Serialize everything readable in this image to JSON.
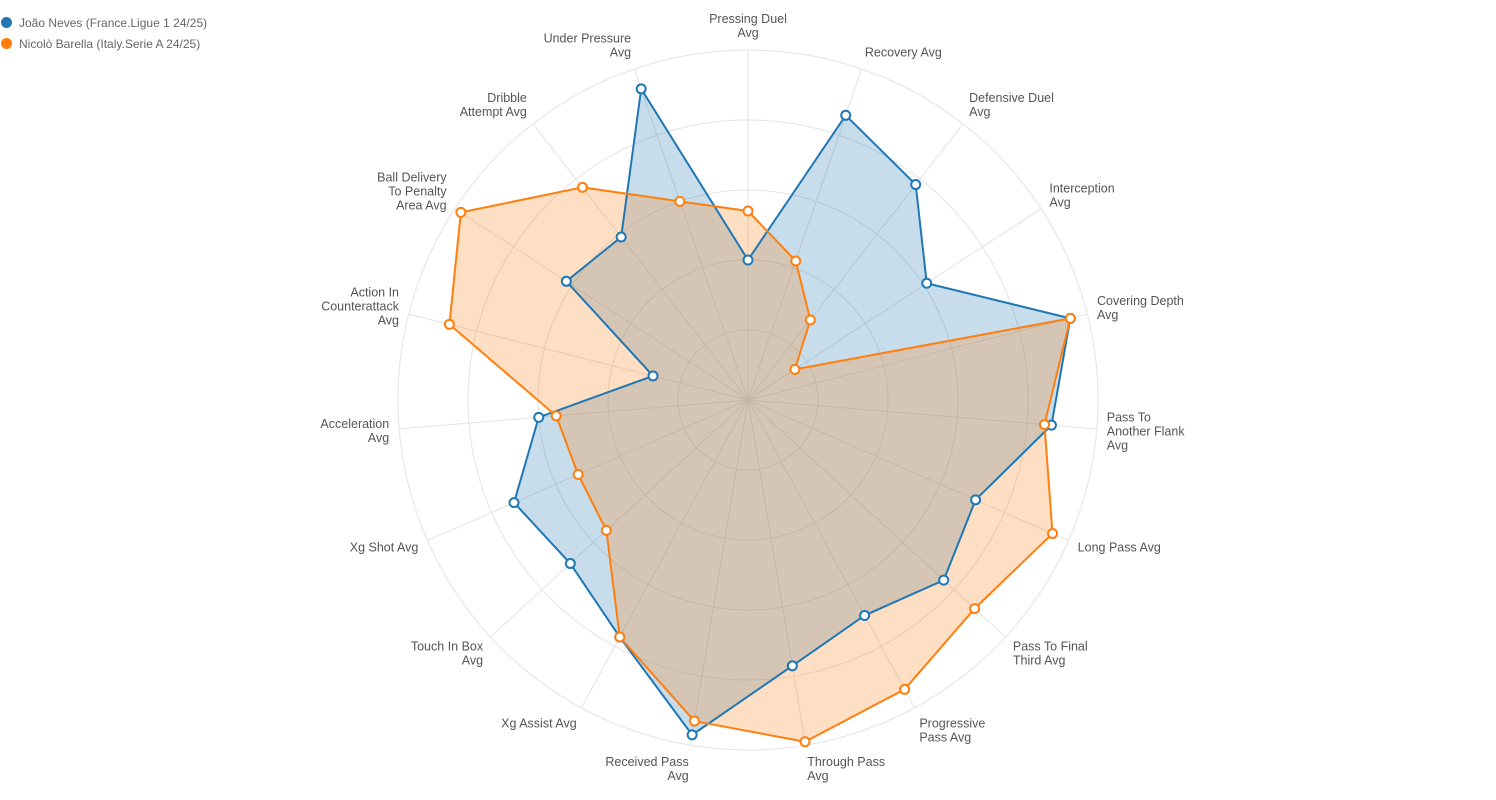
{
  "legend": {
    "items": [
      {
        "label": "João Neves (France.Ligue 1 24/25)"
      },
      {
        "label": "Nicolò Barella (Italy.Serie A 24/25)"
      }
    ]
  },
  "colors": {
    "series1": "#1f77b4",
    "series2": "#ff7f0e",
    "grid": "#e3e3e3",
    "axis_label": "#555555"
  },
  "chart_data": {
    "type": "radar",
    "grid": true,
    "legend_position": "top-left",
    "rlim": [
      0,
      1
    ],
    "rings": 5,
    "axes": [
      "Pressing Duel\nAvg",
      "Recovery Avg",
      "Defensive Duel\nAvg",
      "Interception\nAvg",
      "Covering Depth\nAvg",
      "Pass To\nAnother Flank\nAvg",
      "Long Pass Avg",
      "Pass To Final\nThird Avg",
      "Progressive\nPass Avg",
      "Through Pass\nAvg",
      "Received Pass\nAvg",
      "Xg Assist Avg",
      "Touch In Box\nAvg",
      "Xg Shot Avg",
      "Acceleration\nAvg",
      "Action In\nCounterattack\nAvg",
      "Ball Delivery\nTo Penalty\nArea Avg",
      "Dribble\nAttempt Avg",
      "Under Pressure\nAvg"
    ],
    "series": [
      {
        "name": "João Neves (France.Ligue 1 24/25)",
        "values": [
          0.4,
          0.86,
          0.78,
          0.61,
          0.95,
          0.87,
          0.71,
          0.76,
          0.7,
          0.77,
          0.97,
          0.77,
          0.69,
          0.73,
          0.6,
          0.28,
          0.62,
          0.59,
          0.94
        ]
      },
      {
        "name": "Nicolò Barella (Italy.Serie A 24/25)",
        "values": [
          0.54,
          0.42,
          0.29,
          0.16,
          0.95,
          0.85,
          0.95,
          0.88,
          0.94,
          0.99,
          0.93,
          0.77,
          0.55,
          0.53,
          0.55,
          0.88,
          0.98,
          0.77,
          0.6
        ]
      }
    ]
  }
}
